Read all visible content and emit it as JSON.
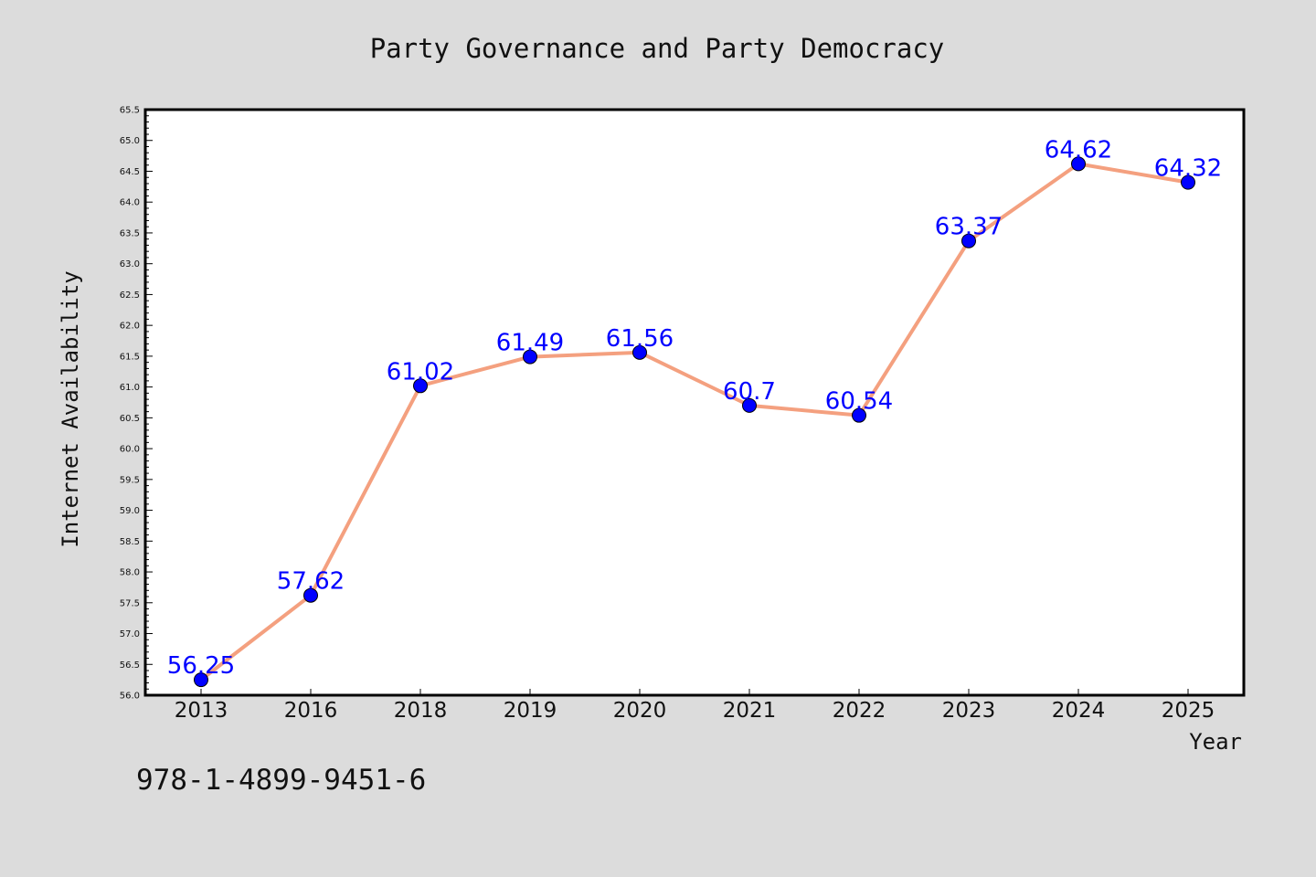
{
  "chart_data": {
    "type": "line",
    "title": "Party Governance and Party Democracy",
    "xlabel": "Year",
    "ylabel": "Internet Availability",
    "categories": [
      "2013",
      "2016",
      "2018",
      "2019",
      "2020",
      "2021",
      "2022",
      "2023",
      "2024",
      "2025"
    ],
    "values": [
      56.25,
      57.62,
      61.02,
      61.49,
      61.56,
      60.7,
      60.54,
      63.37,
      64.62,
      64.32
    ],
    "data_labels": [
      "56.25",
      "57.62",
      "61.02",
      "61.49",
      "61.56",
      "60.7",
      "60.54",
      "63.37",
      "64.62",
      "64.32"
    ],
    "ylim": [
      56.0,
      65.5
    ],
    "y_ticks": [
      "56.0",
      "56.5",
      "57.0",
      "57.5",
      "58.0",
      "58.5",
      "59.0",
      "59.5",
      "60.0",
      "60.5",
      "61.0",
      "61.5",
      "62.0",
      "62.5",
      "63.0",
      "63.5",
      "64.0",
      "64.5",
      "65.0",
      "65.5"
    ],
    "grid": false,
    "legend": "none",
    "line_color": "#f4a07f",
    "marker_color": "#0000ff",
    "label_color": "#0000ff",
    "background_color": "#dcdcdc",
    "plot_background": "#ffffff"
  },
  "footer": {
    "isbn": "978-1-4899-9451-6"
  }
}
